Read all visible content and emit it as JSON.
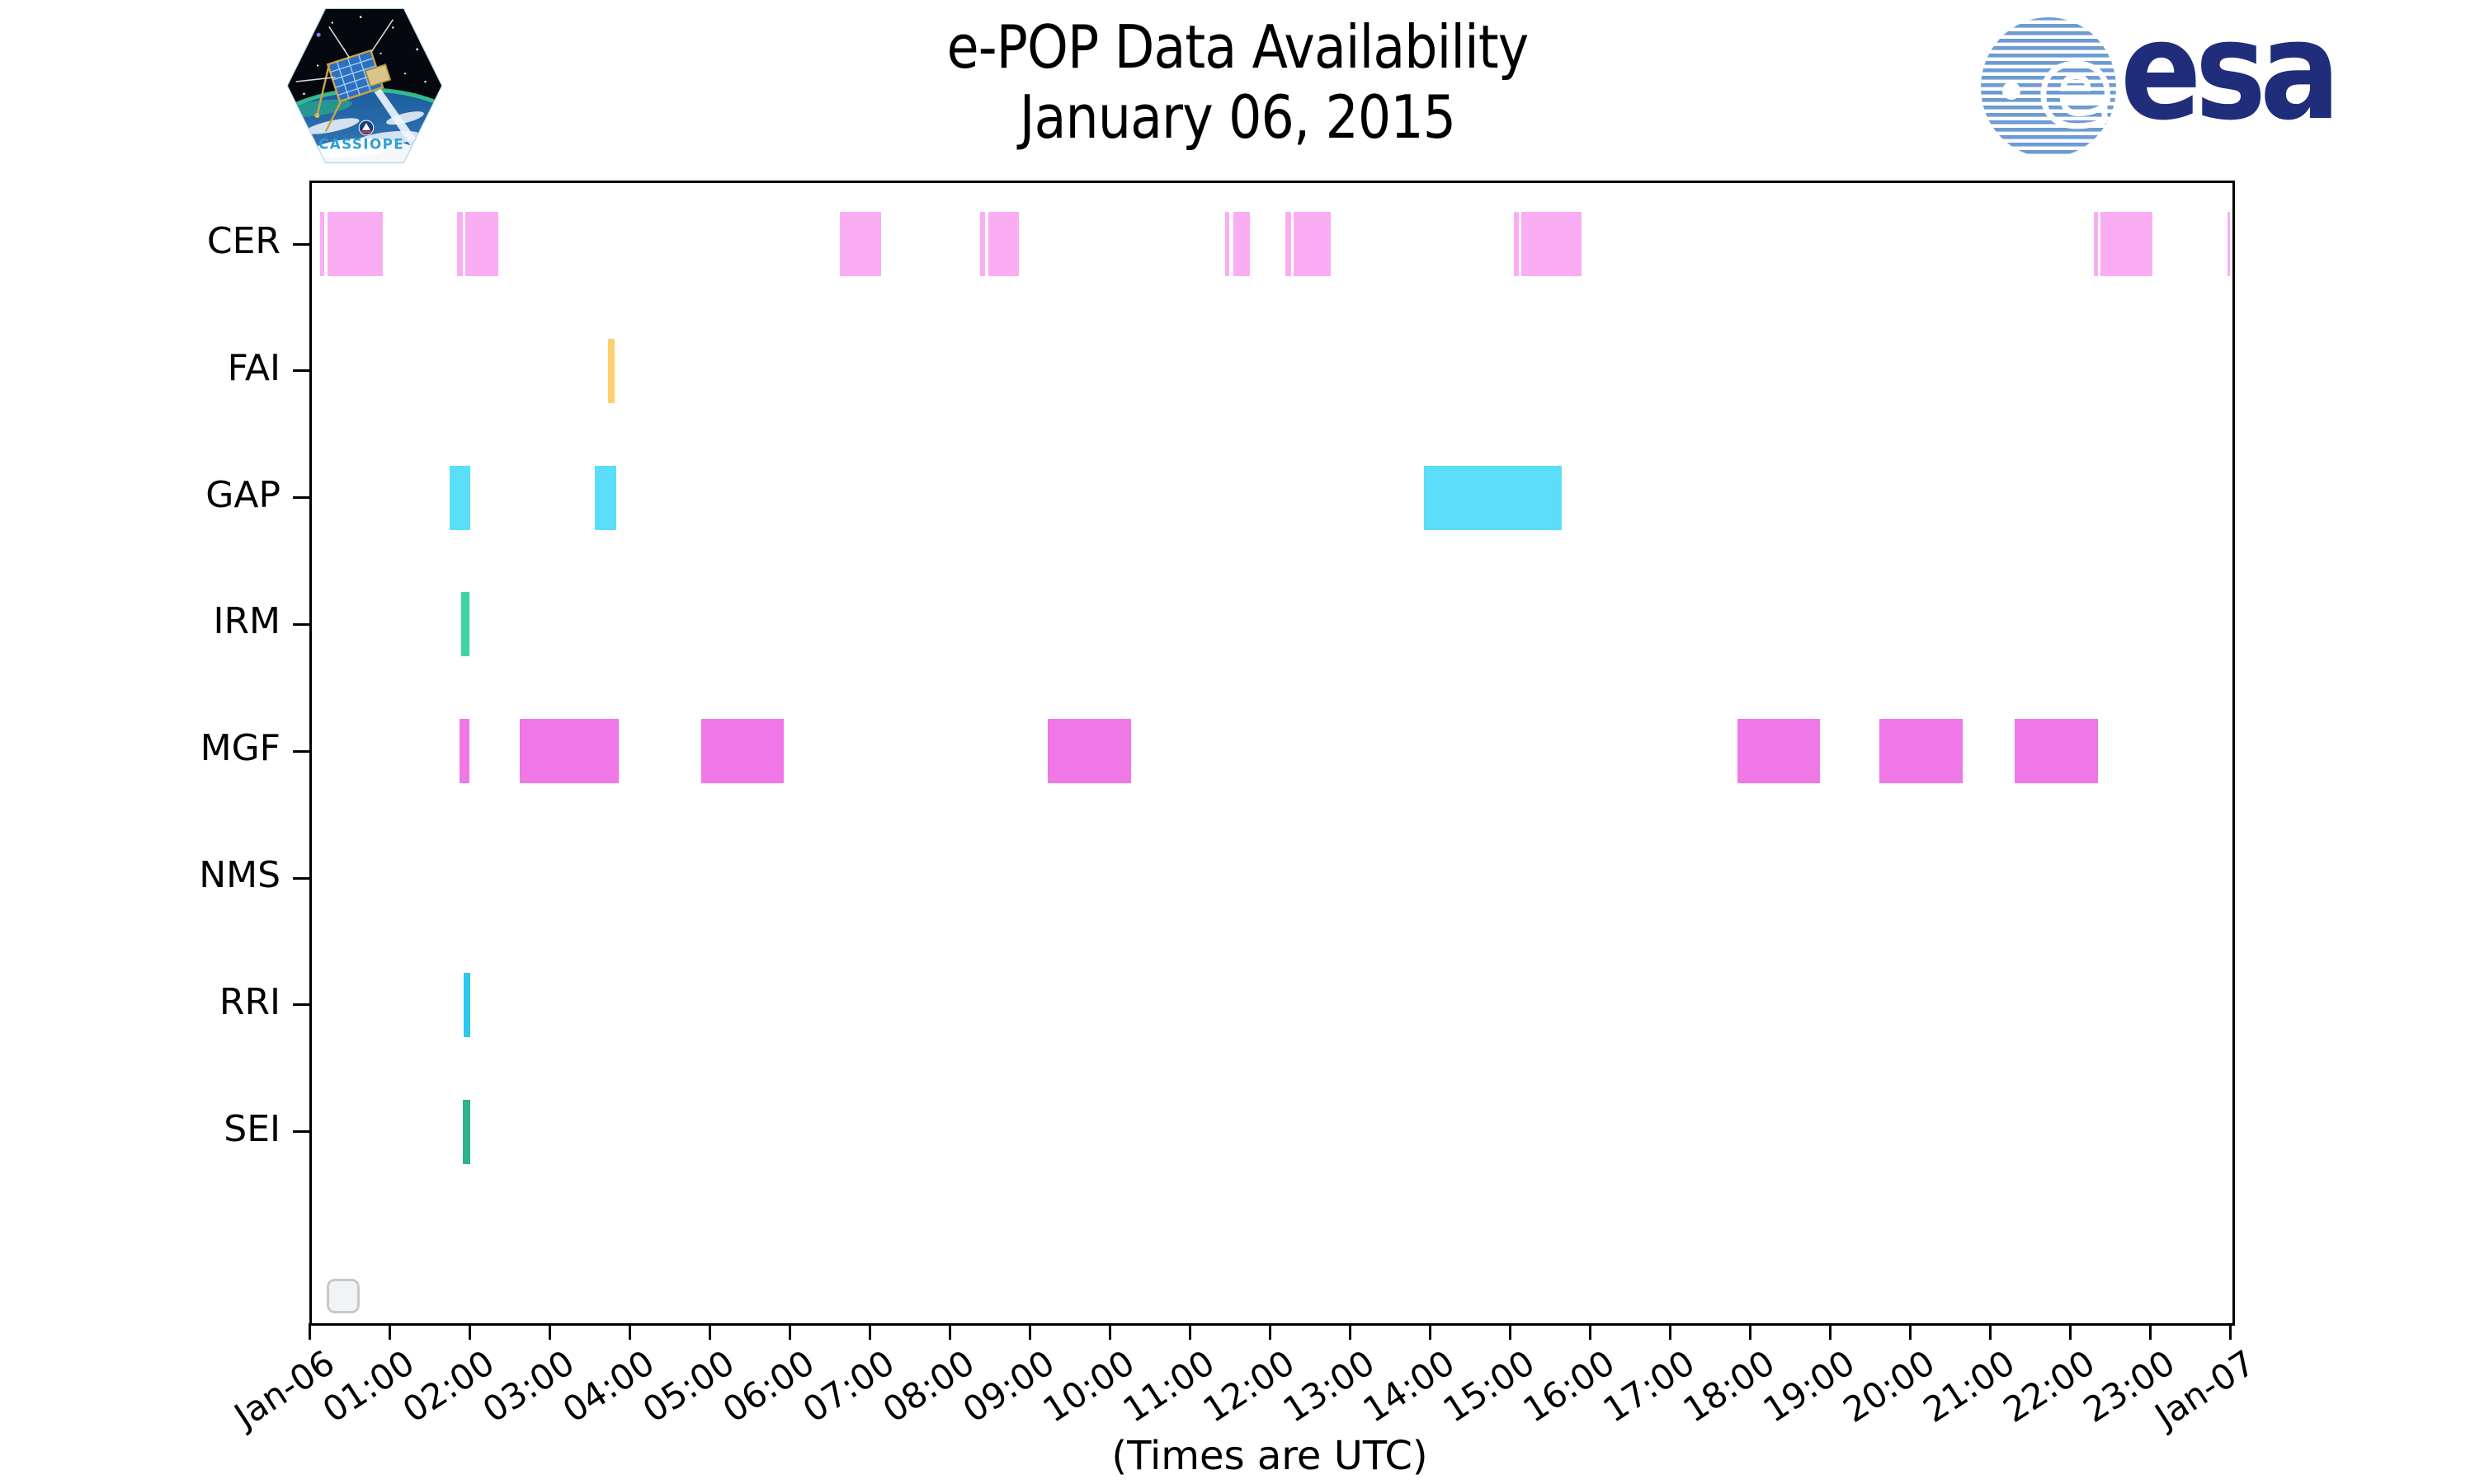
{
  "header": {
    "title_line1": "e-POP Data Availability",
    "title_line2": "January 06, 2015",
    "cassiope_patch_label": "CASSIOPE",
    "esa_wordmark": "esa"
  },
  "footer": {
    "x_caption": "(Times are UTC)"
  },
  "chart_data": {
    "type": "bar",
    "subtype": "broken-bar-timeline",
    "title": "e-POP Data Availability — January 06, 2015",
    "xlabel": "(Times are UTC)",
    "x_range_hours": [
      0,
      24
    ],
    "grid": false,
    "legend": "none",
    "x_tick_labels": [
      "Jan-06",
      "01:00",
      "02:00",
      "03:00",
      "04:00",
      "05:00",
      "06:00",
      "07:00",
      "08:00",
      "09:00",
      "10:00",
      "11:00",
      "12:00",
      "13:00",
      "14:00",
      "15:00",
      "16:00",
      "17:00",
      "18:00",
      "19:00",
      "20:00",
      "21:00",
      "22:00",
      "23:00",
      "Jan-07"
    ],
    "instruments": [
      {
        "name": "CER",
        "color": "#fbadf3",
        "segments": [
          [
            "00:06",
            "00:09"
          ],
          [
            "00:12",
            "00:53"
          ],
          [
            "01:49",
            "01:53"
          ],
          [
            "01:55",
            "02:20"
          ],
          [
            "06:36",
            "07:07"
          ],
          [
            "08:21",
            "08:25"
          ],
          [
            "08:27",
            "08:50"
          ],
          [
            "11:25",
            "11:28"
          ],
          [
            "11:31",
            "11:43"
          ],
          [
            "12:10",
            "12:14"
          ],
          [
            "12:16",
            "12:44"
          ],
          [
            "15:01",
            "15:05"
          ],
          [
            "15:07",
            "15:52"
          ],
          [
            "22:16",
            "22:19"
          ],
          [
            "22:21",
            "23:00"
          ],
          [
            "23:56",
            "23:58"
          ]
        ]
      },
      {
        "name": "FAI",
        "color": "#fccf6e",
        "segments": [
          [
            "03:42",
            "03:47"
          ]
        ]
      },
      {
        "name": "GAP",
        "color": "#5adef9",
        "segments": [
          [
            "01:43",
            "01:59"
          ],
          [
            "03:32",
            "03:48"
          ],
          [
            "13:54",
            "15:37"
          ]
        ]
      },
      {
        "name": "IRM",
        "color": "#3bd4a4",
        "segments": [
          [
            "01:52",
            "01:58"
          ]
        ]
      },
      {
        "name": "MGF",
        "color": "#ef78e6",
        "segments": [
          [
            "01:51",
            "01:58"
          ],
          [
            "02:36",
            "03:50"
          ],
          [
            "04:52",
            "05:54"
          ],
          [
            "09:12",
            "10:14"
          ],
          [
            "17:49",
            "18:51"
          ],
          [
            "19:35",
            "20:38"
          ],
          [
            "21:17",
            "22:19"
          ]
        ]
      },
      {
        "name": "NMS",
        "color": "#cccccc",
        "segments": []
      },
      {
        "name": "RRI",
        "color": "#2cc7ec",
        "segments": [
          [
            "01:54",
            "01:59"
          ]
        ]
      },
      {
        "name": "SEI",
        "color": "#2eb290",
        "segments": [
          [
            "01:53",
            "01:59"
          ]
        ]
      }
    ]
  }
}
